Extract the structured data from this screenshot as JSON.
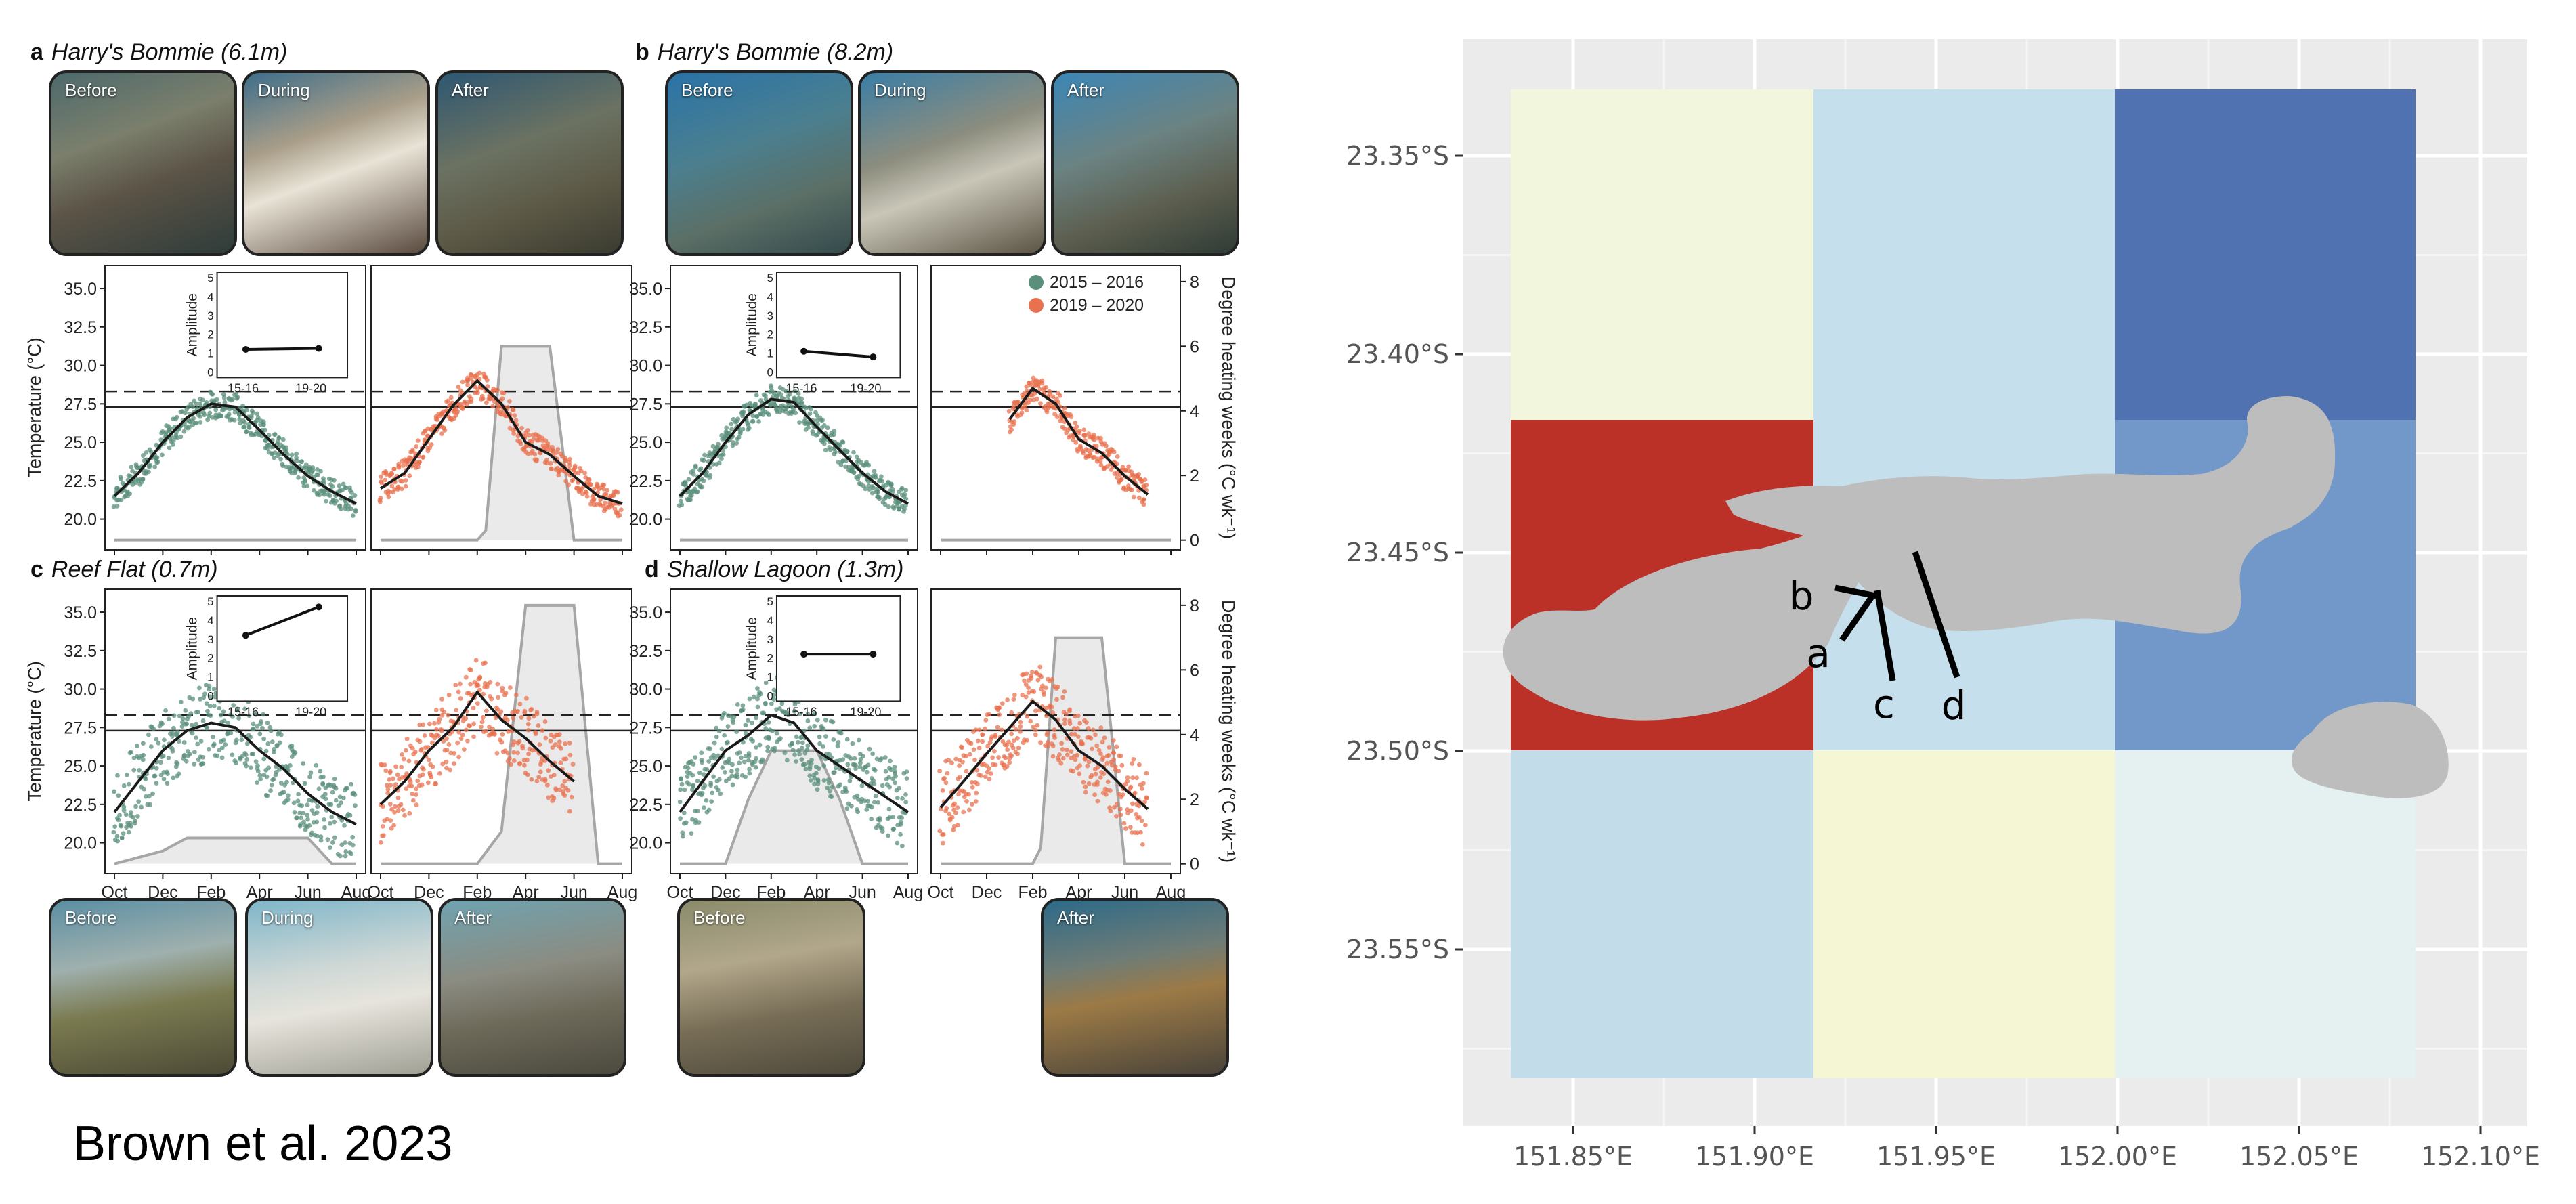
{
  "citation": "Brown et al. 2023",
  "panels": [
    {
      "letter": "a",
      "title": "Harry's Bommie (6.1m)"
    },
    {
      "letter": "b",
      "title": "Harry's Bommie (8.2m)"
    },
    {
      "letter": "c",
      "title": "Reef Flat (0.7m)"
    },
    {
      "letter": "d",
      "title": "Shallow Lagoon (1.3m)"
    }
  ],
  "photos": {
    "a": [
      "Before",
      "During",
      "After"
    ],
    "b": [
      "Before",
      "During",
      "After"
    ],
    "c": [
      "Before",
      "During",
      "After"
    ],
    "d": [
      "Before",
      "After"
    ]
  },
  "legend": [
    {
      "label": "2015 – 2016",
      "color": "#5a8f7b"
    },
    {
      "label": "2019 – 2020",
      "color": "#e8714f"
    }
  ],
  "chart_data": [
    {
      "type": "line",
      "panel": "a-c",
      "ylabel_left": "Temperature (°C)",
      "ylabel_right": "Degree heating weeks (°C wk⁻¹)",
      "y_ticks": [
        "35.0",
        "32.5",
        "30.0",
        "27.5",
        "25.0",
        "22.5",
        "20.0"
      ],
      "y2_ticks": [
        "8",
        "6",
        "4",
        "2",
        "0"
      ],
      "x_ticks": [
        "Oct",
        "Dec",
        "Feb",
        "Apr",
        "Jun",
        "Aug"
      ],
      "thresholds": {
        "mmm": 27.3,
        "bleaching": 28.3
      },
      "inset": {
        "ylabel": "Amplitude",
        "y_ticks": [
          "5",
          "4",
          "3",
          "2",
          "1",
          "0"
        ],
        "x_ticks": [
          "15-16",
          "19-20"
        ]
      },
      "sites": [
        {
          "panel": "a",
          "x": [
            "Oct",
            "Nov",
            "Dec",
            "Jan",
            "Feb",
            "Mar",
            "Apr",
            "May",
            "Jun",
            "Jul",
            "Aug"
          ],
          "series": [
            {
              "name": "2015 – 2016",
              "values": [
                21.5,
                23.0,
                25.0,
                26.6,
                27.5,
                27.3,
                25.8,
                24.2,
                22.8,
                21.8,
                21.0
              ]
            },
            {
              "name": "2019 – 2020",
              "values": [
                22.0,
                23.0,
                25.2,
                27.4,
                29.0,
                27.5,
                25.0,
                24.2,
                22.8,
                21.5,
                21.0
              ]
            }
          ],
          "dhw": {
            "x": [
              "Oct",
              "Feb",
              "Feb",
              "Mar",
              "Apr",
              "May",
              "Jun",
              "Aug"
            ],
            "values": [
              0,
              0,
              0.3,
              6.0,
              6.0,
              6.0,
              0,
              0
            ]
          },
          "amplitude": [
            1.2,
            1.25
          ]
        },
        {
          "panel": "b",
          "x": [
            "Oct",
            "Nov",
            "Dec",
            "Jan",
            "Feb",
            "Mar",
            "Apr",
            "May",
            "Jun",
            "Jul",
            "Aug"
          ],
          "series": [
            {
              "name": "2015 – 2016",
              "values": [
                21.5,
                23.0,
                25.0,
                26.8,
                27.8,
                27.6,
                26.0,
                24.5,
                23.0,
                21.8,
                21.0
              ]
            },
            {
              "name": "2019 – 2020",
              "values": [
                null,
                null,
                null,
                26.5,
                28.5,
                27.5,
                25.2,
                24.3,
                22.8,
                21.6,
                null
              ]
            }
          ],
          "dhw": null,
          "amplitude": [
            1.1,
            0.8
          ]
        },
        {
          "panel": "c",
          "x": [
            "Oct",
            "Nov",
            "Dec",
            "Jan",
            "Feb",
            "Mar",
            "Apr",
            "May",
            "Jun",
            "Jul",
            "Aug"
          ],
          "series": [
            {
              "name": "2015 – 2016",
              "values": [
                22.0,
                24.0,
                26.0,
                27.3,
                27.8,
                27.5,
                26.0,
                24.8,
                23.2,
                22.0,
                21.2
              ]
            },
            {
              "name": "2019 – 2020",
              "values": [
                22.5,
                24.0,
                26.0,
                27.5,
                29.8,
                28.0,
                26.8,
                25.3,
                24.0,
                null,
                null
              ]
            }
          ],
          "dhw": {
            "x": [
              "Oct",
              "Feb",
              "Mar",
              "Apr",
              "May",
              "Jun",
              "Jul",
              "Aug"
            ],
            "values": [
              0,
              0,
              1,
              8,
              8,
              8,
              0,
              0
            ]
          },
          "dhw_2015": {
            "x": [
              "Oct",
              "Dec",
              "Jan",
              "Feb",
              "Apr",
              "Jun",
              "Jul",
              "Aug"
            ],
            "values": [
              0,
              0.4,
              0.8,
              0.8,
              0.8,
              0.8,
              0,
              0
            ]
          },
          "amplitude": [
            3.2,
            4.7
          ]
        },
        {
          "panel": "d",
          "x": [
            "Oct",
            "Nov",
            "Dec",
            "Jan",
            "Feb",
            "Mar",
            "Apr",
            "May",
            "Jun",
            "Jul",
            "Aug"
          ],
          "series": [
            {
              "name": "2015 – 2016",
              "values": [
                22.0,
                24.0,
                26.0,
                27.0,
                28.3,
                27.8,
                26.0,
                25.0,
                24.0,
                23.0,
                22.0
              ]
            },
            {
              "name": "2019 – 2020",
              "values": [
                22.3,
                24.0,
                25.8,
                27.5,
                29.2,
                28.0,
                26.0,
                25.0,
                23.5,
                22.2,
                null
              ]
            }
          ],
          "dhw": {
            "x": [
              "Oct",
              "Feb",
              "Feb",
              "Mar",
              "Apr",
              "May",
              "Jun",
              "Jul",
              "Aug"
            ],
            "values": [
              0,
              0,
              0.5,
              7.0,
              7.0,
              7.0,
              0,
              0,
              0
            ]
          },
          "dhw_2015": {
            "x": [
              "Oct",
              "Dec",
              "Jan",
              "Feb",
              "Apr",
              "May",
              "Jun",
              "Aug"
            ],
            "values": [
              0,
              0,
              2.0,
              3.5,
              3.5,
              2.0,
              0,
              0
            ]
          },
          "amplitude": [
            2.2,
            2.2
          ]
        }
      ]
    },
    {
      "type": "heatmap",
      "panel": "map",
      "x_ticks": [
        "151.85°E",
        "151.90°E",
        "151.95°E",
        "152.00°E",
        "152.05°E",
        "152.10°E"
      ],
      "y_ticks": [
        "23.35°S",
        "23.40°S",
        "23.45°S",
        "23.50°S",
        "23.55°S"
      ],
      "cells": [
        {
          "row": 0,
          "col": 0,
          "color": "#f1f6dc"
        },
        {
          "row": 0,
          "col": 1,
          "color": "#c6dfec"
        },
        {
          "row": 0,
          "col": 2,
          "color": "#5072b0"
        },
        {
          "row": 1,
          "col": 0,
          "color": "#bb3128"
        },
        {
          "row": 1,
          "col": 1,
          "color": "#c6dfec"
        },
        {
          "row": 1,
          "col": 2,
          "color": "#7297c9"
        },
        {
          "row": 2,
          "col": 0,
          "color": "#c3dcea"
        },
        {
          "row": 2,
          "col": 1,
          "color": "#f4f6d4"
        },
        {
          "row": 2,
          "col": 2,
          "color": "#e5f1f0"
        }
      ],
      "site_labels": [
        "a",
        "b",
        "c",
        "d"
      ]
    }
  ]
}
